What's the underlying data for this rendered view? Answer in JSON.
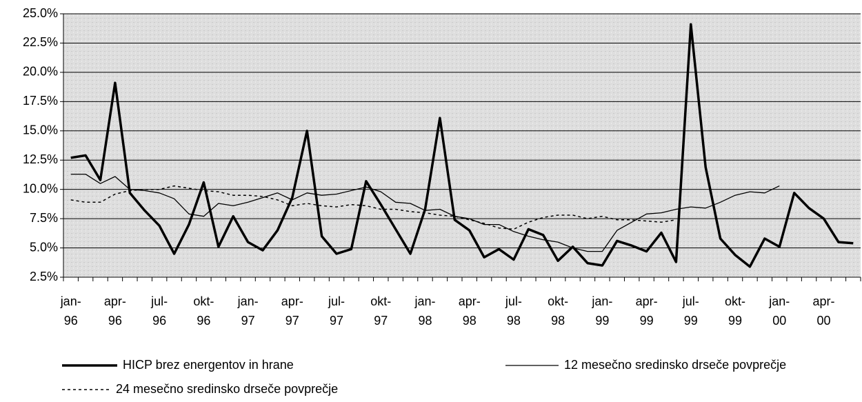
{
  "chart_data": {
    "type": "line",
    "categories": [
      "jan-96",
      null,
      null,
      "apr-96",
      null,
      null,
      "jul-96",
      null,
      null,
      "okt-96",
      null,
      null,
      "jan-97",
      null,
      null,
      "apr-97",
      null,
      null,
      "jul-97",
      null,
      null,
      "okt-97",
      null,
      null,
      "jan-98",
      null,
      null,
      "apr-98",
      null,
      null,
      "jul-98",
      null,
      null,
      "okt-98",
      null,
      null,
      "jan-99",
      null,
      null,
      "apr-99",
      null,
      null,
      "jul-99",
      null,
      null,
      "okt-99",
      null,
      null,
      "jan-00",
      null,
      null,
      "apr-00",
      null,
      null
    ],
    "series": [
      {
        "name": "HICP brez energentov in hrane",
        "color": "#000000",
        "values": [
          12.7,
          12.9,
          10.8,
          19.1,
          9.7,
          8.2,
          6.9,
          4.5,
          7.0,
          10.6,
          5.1,
          7.7,
          5.5,
          4.8,
          6.5,
          9.3,
          15.0,
          6.0,
          4.5,
          4.9,
          10.7,
          8.7,
          6.6,
          4.5,
          8.3,
          16.1,
          7.4,
          6.5,
          4.2,
          4.9,
          4.0,
          6.6,
          6.1,
          3.9,
          5.1,
          3.7,
          3.5,
          5.6,
          5.2,
          4.7,
          6.3,
          3.8,
          24.1,
          11.9,
          5.8,
          4.4,
          3.4,
          5.8,
          5.1,
          9.7,
          8.4,
          7.5,
          5.5,
          5.4
        ]
      },
      {
        "name": "12 mesečno sredinsko drseče povprečje",
        "color": "#000000",
        "values": [
          11.3,
          11.3,
          10.5,
          11.1,
          10.0,
          9.9,
          9.7,
          9.2,
          7.9,
          7.7,
          8.8,
          8.6,
          8.9,
          9.3,
          9.7,
          9.1,
          9.7,
          9.5,
          9.6,
          9.9,
          10.2,
          9.8,
          8.9,
          8.8,
          8.2,
          8.3,
          7.7,
          7.5,
          7.0,
          7.0,
          6.4,
          6.0,
          5.7,
          5.5,
          5.0,
          4.7,
          4.7,
          6.5,
          7.2,
          7.9,
          8.0,
          8.3,
          8.5,
          8.4,
          8.9,
          9.5,
          9.8,
          9.7,
          10.3,
          null,
          null,
          null,
          null,
          null
        ]
      },
      {
        "name": "24 mesečno sredinsko drseče povprečje",
        "color": "#000000",
        "values": [
          9.1,
          8.9,
          8.9,
          9.6,
          9.9,
          10.0,
          10.0,
          10.3,
          10.1,
          9.9,
          9.8,
          9.5,
          9.5,
          9.4,
          9.1,
          8.6,
          8.8,
          8.6,
          8.5,
          8.7,
          8.6,
          8.3,
          8.3,
          8.1,
          8.0,
          7.8,
          7.7,
          7.4,
          7.1,
          6.7,
          6.6,
          7.2,
          7.6,
          7.8,
          7.8,
          7.5,
          7.7,
          7.4,
          7.4,
          7.3,
          7.2,
          7.4,
          null,
          null,
          null,
          null,
          null,
          null,
          null,
          null,
          null,
          null,
          null,
          null
        ]
      }
    ],
    "ylim": [
      2.5,
      25
    ],
    "yticks": [
      {
        "value": 2.5,
        "label": "2.5%"
      },
      {
        "value": 5,
        "label": "5.0%"
      },
      {
        "value": 7.5,
        "label": "7.5%"
      },
      {
        "value": 10,
        "label": "10.0%"
      },
      {
        "value": 12.5,
        "label": "12.5%"
      },
      {
        "value": 15,
        "label": "15.0%"
      },
      {
        "value": 17.5,
        "label": "17.5%"
      },
      {
        "value": 20,
        "label": "20.0%"
      },
      {
        "value": 22.5,
        "label": "22.5%"
      },
      {
        "value": 25,
        "label": "25.0%"
      }
    ],
    "grid": true,
    "legend": "bottom"
  }
}
